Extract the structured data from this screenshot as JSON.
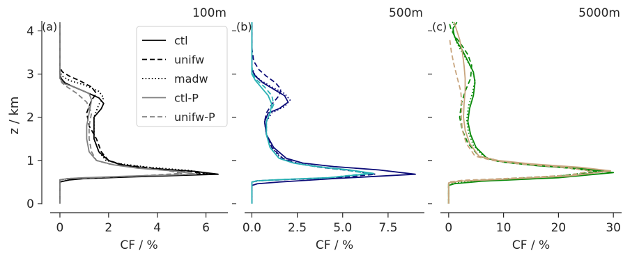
{
  "figure": {
    "ylabel": "z / km",
    "legend_entries": [
      "ctl",
      "unifw",
      "madw",
      "ctl-P",
      "unifw-P"
    ]
  },
  "chart_data": [
    {
      "type": "line",
      "panel_label": "(a)",
      "resolution_label": "100m",
      "xlabel": "CF / %",
      "ylabel": "z / km",
      "xlim": [
        -0.4,
        6.9
      ],
      "ylim": [
        0,
        4.2
      ],
      "xticks": [
        0,
        2,
        4,
        6
      ],
      "yticks": [
        0,
        1,
        2,
        3,
        4
      ],
      "legend": "upper right",
      "series": [
        {
          "name": "ctl",
          "color": "#000000",
          "dash": "solid",
          "x": [
            0,
            0,
            0.4,
            1.0,
            3.0,
            6.5,
            5.5,
            3.5,
            2.5,
            2.0,
            1.6,
            1.4,
            1.4,
            1.7,
            1.8,
            1.6,
            1.0,
            0.5,
            0.2,
            0.05,
            0,
            0
          ],
          "y": [
            0,
            0.5,
            0.55,
            0.58,
            0.62,
            0.68,
            0.75,
            0.82,
            0.9,
            1.0,
            1.2,
            1.5,
            2.0,
            2.2,
            2.32,
            2.45,
            2.6,
            2.72,
            2.8,
            2.9,
            3.0,
            4.2
          ]
        },
        {
          "name": "unifw",
          "color": "#000000",
          "dash": "dashed",
          "x": [
            0,
            0,
            0.3,
            1.2,
            3.5,
            6.0,
            5.3,
            3.8,
            2.6,
            2.0,
            1.7,
            1.5,
            1.2,
            1.1,
            1.3,
            1.5,
            1.3,
            0.8,
            0.4,
            0.1,
            0,
            0
          ],
          "y": [
            0,
            0.55,
            0.58,
            0.6,
            0.63,
            0.68,
            0.75,
            0.82,
            0.9,
            1.0,
            1.2,
            1.5,
            1.8,
            2.1,
            2.4,
            2.55,
            2.7,
            2.85,
            2.95,
            3.05,
            3.15,
            4.2
          ]
        },
        {
          "name": "madw",
          "color": "#000000",
          "dash": "dotted",
          "x": [
            0,
            0,
            0.4,
            1.5,
            3.8,
            6.1,
            5.3,
            3.7,
            2.5,
            1.9,
            1.6,
            1.4,
            1.4,
            1.6,
            1.8,
            1.6,
            1.0,
            0.4,
            0.1,
            0,
            0
          ],
          "y": [
            0,
            0.55,
            0.58,
            0.6,
            0.64,
            0.7,
            0.77,
            0.84,
            0.92,
            1.0,
            1.2,
            1.5,
            2.0,
            2.3,
            2.45,
            2.6,
            2.75,
            2.85,
            2.95,
            3.05,
            4.2
          ]
        },
        {
          "name": "ctl-P",
          "color": "#808080",
          "dash": "solid",
          "x": [
            0,
            0,
            0.3,
            1.0,
            2.5,
            5.6,
            4.8,
            3.2,
            2.2,
            1.5,
            1.2,
            1.1,
            1.1,
            1.2,
            1.3,
            1.2,
            0.6,
            0.15,
            0,
            0,
            0
          ],
          "y": [
            0,
            0.55,
            0.58,
            0.6,
            0.63,
            0.68,
            0.75,
            0.82,
            0.9,
            1.0,
            1.2,
            1.5,
            1.8,
            2.1,
            2.4,
            2.55,
            2.7,
            2.78,
            2.9,
            3.8,
            4.2
          ]
        },
        {
          "name": "unifw-P",
          "color": "#808080",
          "dash": "dashed",
          "x": [
            0,
            0,
            0.4,
            1.3,
            3.2,
            5.0,
            4.4,
            3.0,
            2.0,
            1.5,
            1.3,
            1.2,
            1.2,
            1.3,
            1.1,
            0.7,
            0.3,
            0.08,
            0,
            0
          ],
          "y": [
            0,
            0.55,
            0.58,
            0.6,
            0.64,
            0.7,
            0.77,
            0.84,
            0.92,
            1.0,
            1.2,
            1.5,
            1.8,
            2.1,
            2.35,
            2.55,
            2.7,
            2.8,
            2.9,
            4.2
          ]
        }
      ]
    },
    {
      "type": "line",
      "panel_label": "(b)",
      "resolution_label": "500m",
      "xlabel": "CF / %",
      "ylabel": "",
      "xlim": [
        -0.4,
        9.5
      ],
      "ylim": [
        0,
        4.2
      ],
      "xticks": [
        0.0,
        2.5,
        5.0,
        7.5
      ],
      "yticks": [
        0,
        1,
        2,
        3,
        4
      ],
      "series": [
        {
          "name": "ctl",
          "color": "#0c0c78",
          "dash": "solid",
          "x": [
            0,
            0,
            0.3,
            1.5,
            4.5,
            9.0,
            7.0,
            4.5,
            2.8,
            1.9,
            1.2,
            0.8,
            0.7,
            0.9,
            1.5,
            2.0,
            1.8,
            1.2,
            0.6,
            0.2,
            0,
            0
          ],
          "y": [
            0,
            0.42,
            0.46,
            0.5,
            0.58,
            0.68,
            0.78,
            0.86,
            0.94,
            1.05,
            1.3,
            1.6,
            1.9,
            2.1,
            2.2,
            2.35,
            2.5,
            2.65,
            2.8,
            2.95,
            3.1,
            4.2
          ]
        },
        {
          "name": "unifw",
          "color": "#0c0c78",
          "dash": "dashed",
          "x": [
            0,
            0,
            0.3,
            2.0,
            4.8,
            6.8,
            5.5,
            3.8,
            2.6,
            1.7,
            1.1,
            0.8,
            0.7,
            0.8,
            1.1,
            1.5,
            1.6,
            1.3,
            0.8,
            0.4,
            0.1,
            0,
            0
          ],
          "y": [
            0,
            0.5,
            0.53,
            0.56,
            0.6,
            0.68,
            0.76,
            0.84,
            0.92,
            1.05,
            1.3,
            1.6,
            1.9,
            2.1,
            2.3,
            2.5,
            2.65,
            2.8,
            2.95,
            3.1,
            3.3,
            3.6,
            4.2
          ]
        },
        {
          "name": "madw",
          "color": "#0c0c78",
          "dash": "dotted",
          "x": [
            0,
            0,
            0.4,
            1.8,
            4.5,
            6.6,
            5.3,
            3.6,
            2.4,
            1.6,
            1.1,
            0.8,
            0.8,
            1.1,
            1.8,
            2.1,
            1.8,
            1.1,
            0.5,
            0.15,
            0,
            0
          ],
          "y": [
            0,
            0.5,
            0.53,
            0.56,
            0.6,
            0.7,
            0.78,
            0.86,
            0.94,
            1.05,
            1.3,
            1.6,
            1.9,
            2.1,
            2.25,
            2.4,
            2.55,
            2.7,
            2.85,
            3.0,
            3.15,
            4.2
          ]
        },
        {
          "name": "ctl-P",
          "color": "#2ab1b4",
          "dash": "solid",
          "x": [
            0,
            0,
            0.3,
            1.8,
            4.2,
            6.7,
            5.4,
            3.6,
            2.3,
            1.5,
            1.0,
            0.8,
            0.8,
            1.0,
            1.1,
            0.9,
            0.5,
            0.2,
            0,
            0
          ],
          "y": [
            0,
            0.5,
            0.53,
            0.56,
            0.6,
            0.7,
            0.78,
            0.86,
            0.94,
            1.05,
            1.3,
            1.6,
            1.9,
            2.1,
            2.3,
            2.5,
            2.7,
            2.85,
            3.0,
            4.2
          ]
        },
        {
          "name": "unifw-P",
          "color": "#2ab1b4",
          "dash": "dashed",
          "x": [
            0,
            0,
            0.3,
            1.8,
            4.2,
            6.4,
            5.1,
            3.5,
            2.3,
            1.5,
            1.0,
            0.8,
            0.8,
            1.0,
            1.2,
            1.1,
            0.7,
            0.3,
            0.05,
            0,
            0
          ],
          "y": [
            0,
            0.5,
            0.53,
            0.56,
            0.6,
            0.7,
            0.78,
            0.86,
            0.94,
            1.05,
            1.3,
            1.6,
            1.9,
            2.1,
            2.3,
            2.5,
            2.7,
            2.85,
            3.0,
            3.2,
            4.2
          ]
        }
      ]
    },
    {
      "type": "line",
      "panel_label": "(c)",
      "resolution_label": "5000m",
      "xlabel": "CF / %",
      "ylabel": "",
      "xlim": [
        -1.5,
        31.5
      ],
      "ylim": [
        0,
        4.2
      ],
      "xticks": [
        0,
        10,
        20,
        30
      ],
      "yticks": [
        0,
        1,
        2,
        3,
        4
      ],
      "series": [
        {
          "name": "ctl",
          "color": "#0a8a0a",
          "dash": "solid",
          "x": [
            0,
            0,
            1.0,
            6.0,
            20.0,
            30.0,
            25.0,
            16.0,
            10.0,
            7.0,
            5.0,
            4.0,
            3.5,
            3.8,
            4.5,
            4.8,
            4.5,
            3.5,
            2.5,
            1.5,
            1.0,
            0.8,
            1.5
          ],
          "y": [
            0,
            0.42,
            0.46,
            0.52,
            0.6,
            0.72,
            0.8,
            0.88,
            0.96,
            1.05,
            1.3,
            1.6,
            1.9,
            2.2,
            2.5,
            2.8,
            3.05,
            3.3,
            3.55,
            3.75,
            3.9,
            4.05,
            4.2
          ]
        },
        {
          "name": "unifw",
          "color": "#0a8a0a",
          "dash": "dashed",
          "x": [
            0,
            0,
            2.0,
            8.0,
            20.0,
            27.0,
            22.0,
            15.0,
            9.0,
            5.5,
            3.5,
            2.5,
            2.0,
            2.3,
            3.0,
            4.0,
            4.2,
            3.5,
            2.2,
            1.0,
            0.4,
            0.2,
            0.8
          ],
          "y": [
            0,
            0.48,
            0.52,
            0.56,
            0.64,
            0.74,
            0.82,
            0.9,
            0.98,
            1.1,
            1.4,
            1.7,
            2.0,
            2.3,
            2.6,
            2.9,
            3.2,
            3.45,
            3.7,
            3.9,
            4.05,
            4.15,
            4.2
          ]
        },
        {
          "name": "madw",
          "color": "#0a8a0a",
          "dash": "dotted",
          "x": [
            0,
            0,
            1.5,
            7.0,
            18.0,
            28.5,
            23.0,
            15.0,
            9.5,
            6.5,
            4.5,
            3.6,
            3.3,
            3.6,
            4.3,
            4.8,
            4.3,
            3.2,
            2.0,
            1.2,
            0.8,
            1.0
          ],
          "y": [
            0,
            0.45,
            0.49,
            0.54,
            0.62,
            0.74,
            0.82,
            0.9,
            0.98,
            1.08,
            1.35,
            1.65,
            1.95,
            2.25,
            2.55,
            2.85,
            3.1,
            3.35,
            3.6,
            3.8,
            4.0,
            4.2
          ]
        },
        {
          "name": "ctl-P",
          "color": "#c8a57e",
          "dash": "solid",
          "x": [
            0,
            0,
            2.0,
            9.0,
            22.0,
            29.5,
            24.0,
            15.0,
            9.0,
            5.5,
            3.8,
            3.0,
            2.7,
            2.8,
            3.0,
            3.0,
            2.8,
            2.5,
            2.0,
            1.5,
            1.0
          ],
          "y": [
            0,
            0.48,
            0.52,
            0.56,
            0.64,
            0.76,
            0.84,
            0.92,
            1.0,
            1.1,
            1.4,
            1.7,
            2.0,
            2.3,
            2.6,
            2.9,
            3.2,
            3.5,
            3.8,
            4.0,
            4.2
          ]
        },
        {
          "name": "unifw-P",
          "color": "#c8a57e",
          "dash": "dashed",
          "x": [
            0,
            0,
            2.5,
            10.0,
            22.0,
            26.0,
            21.0,
            13.0,
            8.0,
            4.8,
            3.2,
            2.5,
            2.3,
            2.4,
            2.2,
            1.6,
            1.0,
            0.5,
            0.2
          ],
          "y": [
            0,
            0.5,
            0.54,
            0.58,
            0.66,
            0.76,
            0.84,
            0.92,
            1.0,
            1.1,
            1.4,
            1.7,
            2.0,
            2.3,
            2.6,
            2.9,
            3.2,
            3.5,
            3.8
          ]
        }
      ]
    }
  ]
}
